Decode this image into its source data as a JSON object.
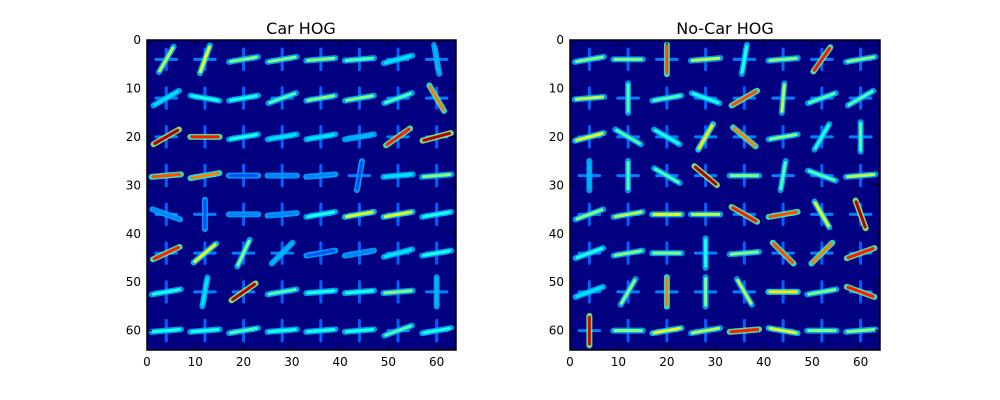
{
  "chart_data": [
    {
      "type": "heatmap",
      "title": "Car HOG",
      "xlabel": "",
      "ylabel": "",
      "colormap": "jet",
      "xlim": [
        0,
        64
      ],
      "ylim": [
        64,
        0
      ],
      "xticks": [
        0,
        10,
        20,
        30,
        40,
        50,
        60
      ],
      "yticks": [
        0,
        10,
        20,
        30,
        40,
        50,
        60
      ],
      "cells_per_side": 8,
      "pixels_per_cell": 8,
      "orientation_cells": [
        [
          {
            "angle": 60,
            "strength": 0.55
          },
          {
            "angle": 70,
            "strength": 0.6
          },
          {
            "angle": 10,
            "strength": 0.5
          },
          {
            "angle": 10,
            "strength": 0.5
          },
          {
            "angle": 5,
            "strength": 0.5
          },
          {
            "angle": 5,
            "strength": 0.45
          },
          {
            "angle": 15,
            "strength": 0.35
          },
          {
            "angle": 100,
            "strength": 0.3
          }
        ],
        [
          {
            "angle": 30,
            "strength": 0.35
          },
          {
            "angle": 170,
            "strength": 0.4
          },
          {
            "angle": 10,
            "strength": 0.4
          },
          {
            "angle": 20,
            "strength": 0.45
          },
          {
            "angle": 10,
            "strength": 0.5
          },
          {
            "angle": 10,
            "strength": 0.5
          },
          {
            "angle": 20,
            "strength": 0.45
          },
          {
            "angle": 120,
            "strength": 0.75
          }
        ],
        [
          {
            "angle": 30,
            "strength": 0.95
          },
          {
            "angle": 0,
            "strength": 0.85
          },
          {
            "angle": 10,
            "strength": 0.4
          },
          {
            "angle": 10,
            "strength": 0.35
          },
          {
            "angle": 10,
            "strength": 0.35
          },
          {
            "angle": 10,
            "strength": 0.3
          },
          {
            "angle": 35,
            "strength": 0.85
          },
          {
            "angle": 15,
            "strength": 0.95
          }
        ],
        [
          {
            "angle": 5,
            "strength": 0.8
          },
          {
            "angle": 10,
            "strength": 0.75
          },
          {
            "angle": 0,
            "strength": 0.2
          },
          {
            "angle": 0,
            "strength": 0.25
          },
          {
            "angle": 5,
            "strength": 0.25
          },
          {
            "angle": 80,
            "strength": 0.2
          },
          {
            "angle": 5,
            "strength": 0.35
          },
          {
            "angle": 5,
            "strength": 0.5
          }
        ],
        [
          {
            "angle": 160,
            "strength": 0.25
          },
          {
            "angle": 90,
            "strength": 0.2
          },
          {
            "angle": 0,
            "strength": 0.25
          },
          {
            "angle": 5,
            "strength": 0.25
          },
          {
            "angle": 10,
            "strength": 0.4
          },
          {
            "angle": 10,
            "strength": 0.6
          },
          {
            "angle": 10,
            "strength": 0.6
          },
          {
            "angle": 10,
            "strength": 0.4
          }
        ],
        [
          {
            "angle": 25,
            "strength": 0.85
          },
          {
            "angle": 40,
            "strength": 0.6
          },
          {
            "angle": 65,
            "strength": 0.5
          },
          {
            "angle": 45,
            "strength": 0.3
          },
          {
            "angle": 10,
            "strength": 0.2
          },
          {
            "angle": 10,
            "strength": 0.25
          },
          {
            "angle": 15,
            "strength": 0.35
          },
          {
            "angle": 10,
            "strength": 0.4
          }
        ],
        [
          {
            "angle": 10,
            "strength": 0.4
          },
          {
            "angle": 80,
            "strength": 0.35
          },
          {
            "angle": 35,
            "strength": 0.95
          },
          {
            "angle": 10,
            "strength": 0.45
          },
          {
            "angle": 5,
            "strength": 0.4
          },
          {
            "angle": 5,
            "strength": 0.4
          },
          {
            "angle": 5,
            "strength": 0.5
          },
          {
            "angle": 90,
            "strength": 0.3
          }
        ],
        [
          {
            "angle": 5,
            "strength": 0.4
          },
          {
            "angle": 5,
            "strength": 0.4
          },
          {
            "angle": 10,
            "strength": 0.45
          },
          {
            "angle": 5,
            "strength": 0.4
          },
          {
            "angle": 5,
            "strength": 0.4
          },
          {
            "angle": 5,
            "strength": 0.4
          },
          {
            "angle": 20,
            "strength": 0.45
          },
          {
            "angle": 10,
            "strength": 0.4
          }
        ]
      ]
    },
    {
      "type": "heatmap",
      "title": "No-Car HOG",
      "xlabel": "",
      "ylabel": "",
      "colormap": "jet",
      "xlim": [
        0,
        64
      ],
      "ylim": [
        64,
        0
      ],
      "xticks": [
        0,
        10,
        20,
        30,
        40,
        50,
        60
      ],
      "yticks": [
        0,
        10,
        20,
        30,
        40,
        50,
        60
      ],
      "cells_per_side": 8,
      "pixels_per_cell": 8,
      "orientation_cells": [
        [
          {
            "angle": 10,
            "strength": 0.5
          },
          {
            "angle": 0,
            "strength": 0.5
          },
          {
            "angle": 90,
            "strength": 0.8
          },
          {
            "angle": 5,
            "strength": 0.55
          },
          {
            "angle": 80,
            "strength": 0.4
          },
          {
            "angle": 5,
            "strength": 0.5
          },
          {
            "angle": 55,
            "strength": 0.85
          },
          {
            "angle": 10,
            "strength": 0.5
          }
        ],
        [
          {
            "angle": 5,
            "strength": 0.55
          },
          {
            "angle": 90,
            "strength": 0.45
          },
          {
            "angle": 10,
            "strength": 0.45
          },
          {
            "angle": 160,
            "strength": 0.4
          },
          {
            "angle": 30,
            "strength": 0.8
          },
          {
            "angle": 85,
            "strength": 0.55
          },
          {
            "angle": 20,
            "strength": 0.45
          },
          {
            "angle": 30,
            "strength": 0.45
          }
        ],
        [
          {
            "angle": 15,
            "strength": 0.6
          },
          {
            "angle": 150,
            "strength": 0.45
          },
          {
            "angle": 150,
            "strength": 0.4
          },
          {
            "angle": 60,
            "strength": 0.65
          },
          {
            "angle": 140,
            "strength": 0.75
          },
          {
            "angle": 10,
            "strength": 0.5
          },
          {
            "angle": 60,
            "strength": 0.4
          },
          {
            "angle": 90,
            "strength": 0.45
          }
        ],
        [
          {
            "angle": 90,
            "strength": 0.3
          },
          {
            "angle": 90,
            "strength": 0.45
          },
          {
            "angle": 150,
            "strength": 0.45
          },
          {
            "angle": 140,
            "strength": 0.95
          },
          {
            "angle": 0,
            "strength": 0.5
          },
          {
            "angle": 80,
            "strength": 0.45
          },
          {
            "angle": 160,
            "strength": 0.45
          },
          {
            "angle": 5,
            "strength": 0.55
          }
        ],
        [
          {
            "angle": 20,
            "strength": 0.5
          },
          {
            "angle": 10,
            "strength": 0.55
          },
          {
            "angle": 0,
            "strength": 0.6
          },
          {
            "angle": 0,
            "strength": 0.55
          },
          {
            "angle": 150,
            "strength": 0.85
          },
          {
            "angle": 10,
            "strength": 0.8
          },
          {
            "angle": 120,
            "strength": 0.6
          },
          {
            "angle": 110,
            "strength": 0.95
          }
        ],
        [
          {
            "angle": 20,
            "strength": 0.4
          },
          {
            "angle": 10,
            "strength": 0.5
          },
          {
            "angle": 0,
            "strength": 0.5
          },
          {
            "angle": 90,
            "strength": 0.4
          },
          {
            "angle": 5,
            "strength": 0.5
          },
          {
            "angle": 135,
            "strength": 0.8
          },
          {
            "angle": 45,
            "strength": 0.75
          },
          {
            "angle": 20,
            "strength": 0.85
          }
        ],
        [
          {
            "angle": 20,
            "strength": 0.35
          },
          {
            "angle": 60,
            "strength": 0.5
          },
          {
            "angle": 90,
            "strength": 0.75
          },
          {
            "angle": 90,
            "strength": 0.5
          },
          {
            "angle": 120,
            "strength": 0.55
          },
          {
            "angle": 0,
            "strength": 0.65
          },
          {
            "angle": 10,
            "strength": 0.5
          },
          {
            "angle": 160,
            "strength": 0.85
          }
        ],
        [
          {
            "angle": 90,
            "strength": 0.9
          },
          {
            "angle": 0,
            "strength": 0.5
          },
          {
            "angle": 10,
            "strength": 0.6
          },
          {
            "angle": 10,
            "strength": 0.55
          },
          {
            "angle": 5,
            "strength": 0.85
          },
          {
            "angle": 170,
            "strength": 0.6
          },
          {
            "angle": 0,
            "strength": 0.5
          },
          {
            "angle": 5,
            "strength": 0.5
          }
        ]
      ]
    }
  ]
}
